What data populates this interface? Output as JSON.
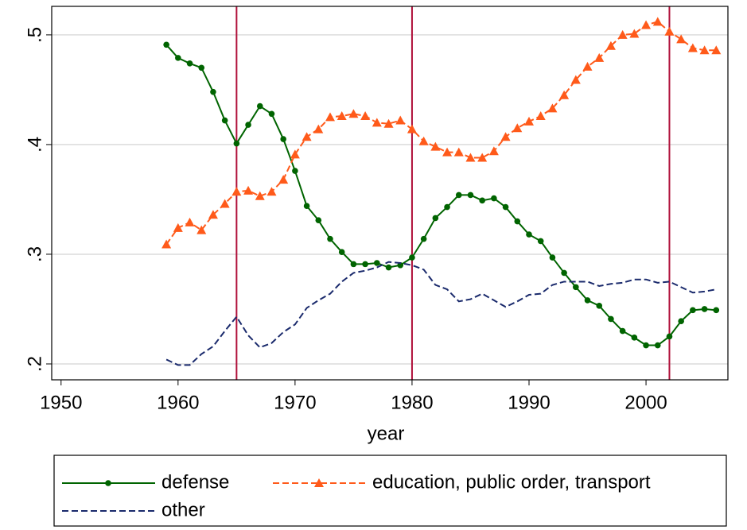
{
  "chart_data": {
    "type": "line",
    "x_label": "year",
    "x": [
      1959,
      1960,
      1961,
      1962,
      1963,
      1964,
      1965,
      1966,
      1967,
      1968,
      1969,
      1970,
      1971,
      1972,
      1973,
      1974,
      1975,
      1976,
      1977,
      1978,
      1979,
      1980,
      1981,
      1982,
      1983,
      1984,
      1985,
      1986,
      1987,
      1988,
      1989,
      1990,
      1991,
      1992,
      1993,
      1994,
      1995,
      1996,
      1997,
      1998,
      1999,
      2000,
      2001,
      2002,
      2003,
      2004,
      2005,
      2006
    ],
    "series": [
      {
        "name": "defense",
        "color": "#006400",
        "marker": "circle",
        "dash": "solid",
        "values": [
          0.491,
          0.479,
          0.474,
          0.47,
          0.448,
          0.422,
          0.401,
          0.418,
          0.435,
          0.428,
          0.405,
          0.376,
          0.344,
          0.331,
          0.314,
          0.302,
          0.291,
          0.291,
          0.292,
          0.288,
          0.29,
          0.297,
          0.314,
          0.333,
          0.343,
          0.354,
          0.354,
          0.349,
          0.351,
          0.343,
          0.33,
          0.318,
          0.312,
          0.297,
          0.283,
          0.27,
          0.258,
          0.253,
          0.241,
          0.23,
          0.224,
          0.217,
          0.217,
          0.225,
          0.239,
          0.249,
          0.25,
          0.249
        ]
      },
      {
        "name": "education, public order, transport",
        "color": "#ff5a1a",
        "marker": "triangle",
        "dash": "dashed",
        "values": [
          0.309,
          0.324,
          0.329,
          0.322,
          0.336,
          0.346,
          0.357,
          0.358,
          0.353,
          0.357,
          0.368,
          0.391,
          0.407,
          0.414,
          0.425,
          0.426,
          0.428,
          0.426,
          0.42,
          0.419,
          0.422,
          0.414,
          0.403,
          0.398,
          0.393,
          0.393,
          0.388,
          0.388,
          0.394,
          0.407,
          0.415,
          0.421,
          0.426,
          0.433,
          0.445,
          0.459,
          0.471,
          0.479,
          0.49,
          0.5,
          0.501,
          0.509,
          0.512,
          0.503,
          0.496,
          0.488,
          0.486,
          0.486
        ]
      },
      {
        "name": "other",
        "color": "#1a2a6c",
        "marker": "none",
        "dash": "dashed",
        "values": [
          0.204,
          0.199,
          0.199,
          0.209,
          0.216,
          0.23,
          0.243,
          0.226,
          0.215,
          0.219,
          0.229,
          0.236,
          0.251,
          0.258,
          0.264,
          0.275,
          0.283,
          0.285,
          0.288,
          0.293,
          0.292,
          0.29,
          0.286,
          0.272,
          0.268,
          0.257,
          0.259,
          0.264,
          0.258,
          0.252,
          0.257,
          0.263,
          0.264,
          0.272,
          0.275,
          0.275,
          0.275,
          0.271,
          0.273,
          0.274,
          0.277,
          0.277,
          0.274,
          0.275,
          0.27,
          0.265,
          0.266,
          0.268
        ]
      }
    ],
    "xlim": [
      1949.2,
      2007.0
    ],
    "ylim": [
      0.1855,
      0.526
    ],
    "xticks": [
      1950,
      1960,
      1970,
      1980,
      1990,
      2000
    ],
    "yticks": [
      {
        "value": 0.2,
        "label": ".2"
      },
      {
        "value": 0.3,
        "label": ".3"
      },
      {
        "value": 0.4,
        "label": ".4"
      },
      {
        "value": 0.5,
        "label": ".5"
      }
    ],
    "grid": true,
    "vlines": [
      1965,
      1980,
      2002
    ],
    "vline_color": "#b0103a",
    "legend_position": "bottom"
  }
}
